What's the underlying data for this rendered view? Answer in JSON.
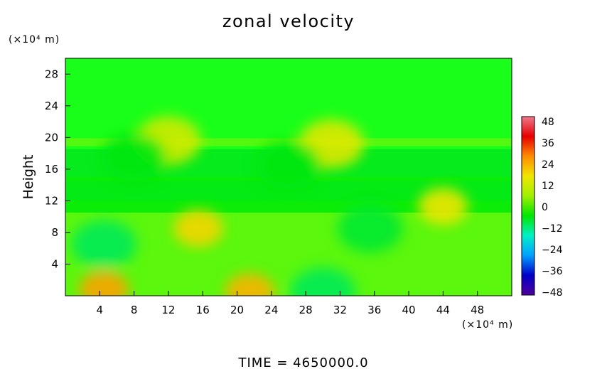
{
  "chart_data": {
    "type": "heatmap",
    "title": "zonal velocity",
    "xlabel": "",
    "ylabel": "Height",
    "x_unit": "(×10⁴ m)",
    "y_unit": "(×10⁴ m)",
    "xlim": [
      0,
      52
    ],
    "ylim": [
      0,
      30
    ],
    "x_ticks": [
      "4",
      "8",
      "12",
      "16",
      "20",
      "24",
      "28",
      "32",
      "36",
      "40",
      "44",
      "48"
    ],
    "y_ticks": [
      "4",
      "8",
      "12",
      "16",
      "20",
      "24",
      "28"
    ],
    "colorbar": {
      "ticks": [
        "48",
        "36",
        "24",
        "12",
        "0",
        "−12",
        "−24",
        "−36",
        "−48"
      ],
      "range": [
        -48,
        48
      ]
    },
    "footer": "TIME  =  4650000.0",
    "features": [
      {
        "x": 4.5,
        "y": 0.8,
        "value": 24
      },
      {
        "x": 21.5,
        "y": 0.5,
        "value": 22
      },
      {
        "x": 15.5,
        "y": 8.5,
        "value": 18
      },
      {
        "x": 4.5,
        "y": 6.5,
        "value": -10
      },
      {
        "x": 30,
        "y": 0.5,
        "value": -10
      },
      {
        "x": 35.5,
        "y": 8.5,
        "value": -8
      },
      {
        "x": 31,
        "y": 19.2,
        "value": 14
      },
      {
        "x": 12,
        "y": 19.6,
        "value": 12
      },
      {
        "x": 44,
        "y": 11.3,
        "value": 16
      },
      {
        "x": 26,
        "y": 16.5,
        "value": -6
      },
      {
        "x": 8,
        "y": 17.5,
        "value": -6
      }
    ]
  },
  "colors": {
    "background_field": "#19ff19",
    "colorbar_stops": [
      "#f0788c",
      "#e60000",
      "#ff8c00",
      "#f0e600",
      "#a0f000",
      "#00e600",
      "#00f0c8",
      "#00a0ff",
      "#0000c8",
      "#50009b"
    ]
  }
}
